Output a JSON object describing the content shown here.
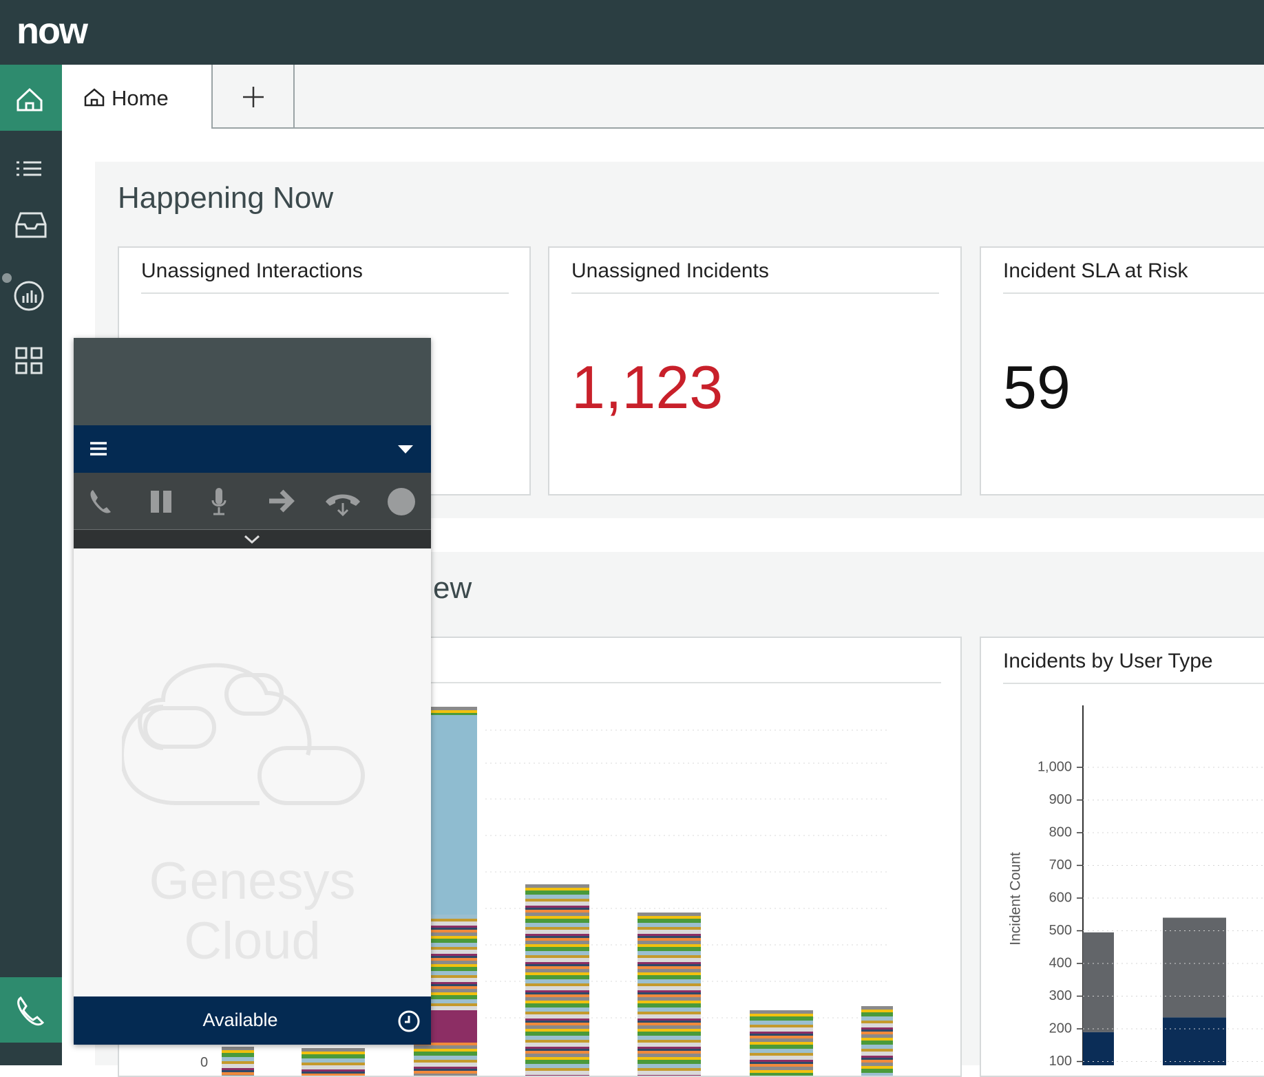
{
  "app": {
    "logo": "now",
    "tab": "Home"
  },
  "happening_now": {
    "title": "Happening Now",
    "cards": [
      {
        "title": "Unassigned Interactions"
      },
      {
        "title": "Unassigned Incidents",
        "value": "1,123"
      },
      {
        "title": "Incident SLA at Risk",
        "value": "59"
      }
    ]
  },
  "overview": {
    "title_fragment": "ew",
    "zero_tick": "0"
  },
  "genesys": {
    "watermark": "Genesys Cloud",
    "status": "Available"
  },
  "chart_data": {
    "type": "bar",
    "stacked": true,
    "title": "Incidents by User Type",
    "y_label": "Incident Count",
    "categories": [
      null,
      null
    ],
    "series": [
      {
        "color": "#0b2d57",
        "values": [
          190,
          235
        ]
      },
      {
        "color": "#626569",
        "values": [
          305,
          305
        ]
      }
    ],
    "ylim": [
      0,
      1000
    ],
    "yticks": [
      100,
      200,
      300,
      400,
      500,
      600,
      700,
      800,
      900,
      {
        "value": 1000,
        "label": "1,000"
      }
    ],
    "grid": true
  }
}
